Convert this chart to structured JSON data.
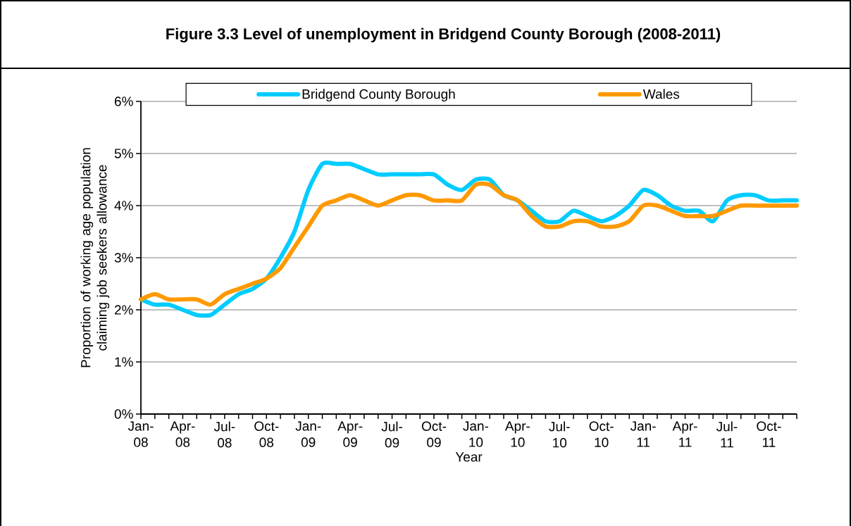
{
  "chart_data": {
    "type": "line",
    "title": "Figure 3.3 Level of unemployment in Bridgend County Borough (2008-2011)",
    "xlabel": "Year",
    "ylabel": "Proportion of working age population claiming job seekers allowance",
    "categories": [
      "Jan-08",
      null,
      null,
      "Apr-08",
      null,
      null,
      "Jul-08",
      null,
      null,
      "Oct-08",
      null,
      null,
      "Jan-09",
      null,
      null,
      "Apr-09",
      null,
      null,
      "Jul-09",
      null,
      null,
      "Oct-09",
      null,
      null,
      "Jan-10",
      null,
      null,
      "Apr-10",
      null,
      null,
      "Jul-10",
      null,
      null,
      "Oct-10",
      null,
      null,
      "Jan-11",
      null,
      null,
      "Apr-11",
      null,
      null,
      "Jul-11",
      null,
      null,
      "Oct-11",
      null,
      null
    ],
    "series": [
      {
        "name": "Bridgend County Borough",
        "color": "#00ccff",
        "values": [
          2.2,
          2.1,
          2.1,
          2.0,
          1.9,
          1.9,
          2.1,
          2.3,
          2.4,
          2.6,
          3.0,
          3.5,
          4.3,
          4.8,
          4.8,
          4.8,
          4.7,
          4.6,
          4.6,
          4.6,
          4.6,
          4.6,
          4.4,
          4.3,
          4.5,
          4.5,
          4.2,
          4.1,
          3.9,
          3.7,
          3.7,
          3.9,
          3.8,
          3.7,
          3.8,
          4.0,
          4.3,
          4.2,
          4.0,
          3.9,
          3.9,
          3.7,
          4.1,
          4.2,
          4.2,
          4.1,
          4.1,
          4.1
        ]
      },
      {
        "name": "Wales",
        "color": "#ff9900",
        "values": [
          2.2,
          2.3,
          2.2,
          2.2,
          2.2,
          2.1,
          2.3,
          2.4,
          2.5,
          2.6,
          2.8,
          3.2,
          3.6,
          4.0,
          4.1,
          4.2,
          4.1,
          4.0,
          4.1,
          4.2,
          4.2,
          4.1,
          4.1,
          4.1,
          4.4,
          4.4,
          4.2,
          4.1,
          3.8,
          3.6,
          3.6,
          3.7,
          3.7,
          3.6,
          3.6,
          3.7,
          4.0,
          4.0,
          3.9,
          3.8,
          3.8,
          3.8,
          3.9,
          4.0,
          4.0,
          4.0,
          4.0,
          4.0
        ]
      }
    ],
    "ylim": [
      0,
      6
    ],
    "yticks": [
      {
        "value": 0,
        "label": "0%"
      },
      {
        "value": 1,
        "label": "1%"
      },
      {
        "value": 2,
        "label": "2%"
      },
      {
        "value": 3,
        "label": "3%"
      },
      {
        "value": 4,
        "label": "4%"
      },
      {
        "value": 5,
        "label": "5%"
      },
      {
        "value": 6,
        "label": "6%"
      }
    ],
    "grid": "y",
    "legend": "top",
    "line_style": "solid"
  }
}
